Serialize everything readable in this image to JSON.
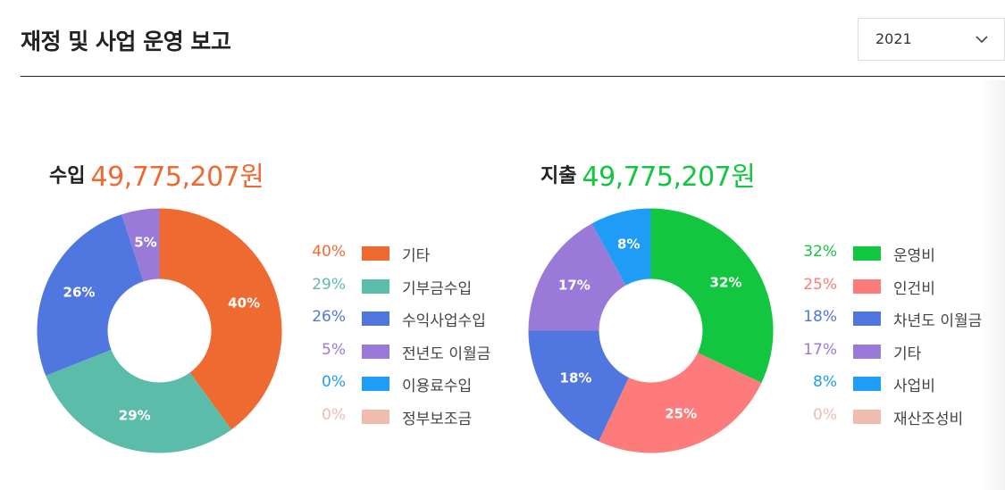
{
  "page": {
    "title": "재정 및 사업 운영 보고"
  },
  "year_select": {
    "value": "2021",
    "icon": "chevron-down-icon"
  },
  "chart_data": [
    {
      "type": "pie",
      "variant": "donut",
      "heading_label": "수입",
      "heading_amount": "49,775,207원",
      "heading_color": "#ef6a30",
      "categories": [
        "기타",
        "기부금수입",
        "수익사업수입",
        "전년도 이월금",
        "이용료수입",
        "정부보조금"
      ],
      "values": [
        40,
        29,
        26,
        5,
        0,
        0
      ],
      "value_labels": [
        "40%",
        "29%",
        "26%",
        "5%",
        "0%",
        "0%"
      ],
      "colors": [
        "#ef6a30",
        "#5cbcaa",
        "#5076e0",
        "#9a7ad8",
        "#1f9cf5",
        "#efbcb0"
      ],
      "legend": "right"
    },
    {
      "type": "pie",
      "variant": "donut",
      "heading_label": "지출",
      "heading_amount": "49,775,207원",
      "heading_color": "#12c63f",
      "categories": [
        "운영비",
        "인건비",
        "차년도 이월금",
        "기타",
        "사업비",
        "재산조성비"
      ],
      "values": [
        32,
        25,
        18,
        17,
        8,
        0
      ],
      "value_labels": [
        "32%",
        "25%",
        "18%",
        "17%",
        "8%",
        "0%"
      ],
      "colors": [
        "#12c63f",
        "#fd7b7b",
        "#5076e0",
        "#9a7ad8",
        "#1f9cf5",
        "#efbcb0"
      ],
      "legend": "right"
    }
  ]
}
